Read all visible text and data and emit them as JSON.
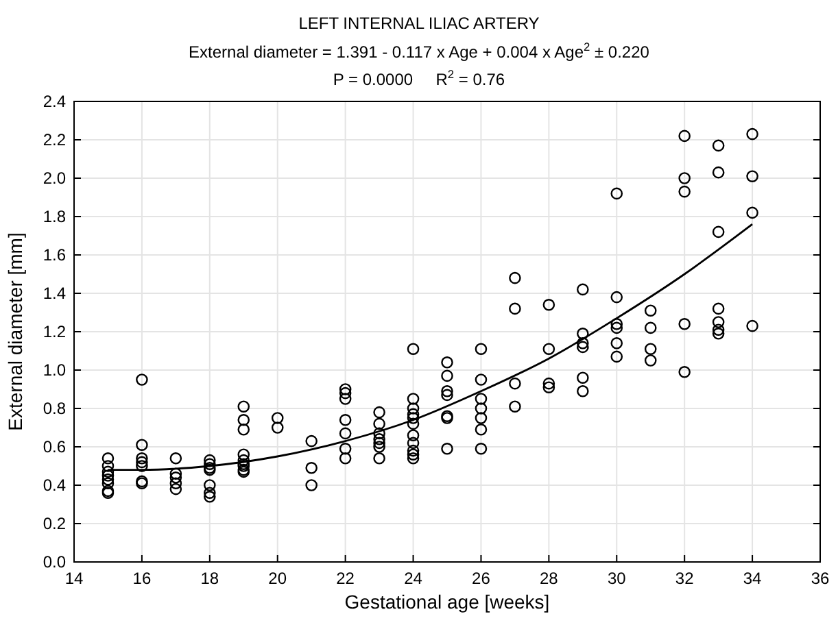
{
  "chart_data": {
    "type": "scatter",
    "title": "LEFT INTERNAL ILIAC ARTERY",
    "subtitle": "External diameter = 1.391 - 0.117 x Age + 0.004 x Age$^{2}$ ± 0.220",
    "annotations": [
      "P = 0.0000     R$^{2}$ = 0.76"
    ],
    "xlabel": "Gestational age [weeks]",
    "ylabel": "External diameter [mm]",
    "xlim": [
      14,
      36
    ],
    "xticks": [
      14,
      16,
      18,
      20,
      22,
      24,
      26,
      28,
      30,
      32,
      34,
      36
    ],
    "ylim": [
      0,
      2.4
    ],
    "yticks": [
      {
        "value": 0,
        "label": "0.0"
      },
      {
        "value": 0.2,
        "label": "0.2"
      },
      {
        "value": 0.4,
        "label": "0.4"
      },
      {
        "value": 0.6,
        "label": "0.6"
      },
      {
        "value": 0.8,
        "label": "0.8"
      },
      {
        "value": 1,
        "label": "1.0"
      },
      {
        "value": 1.2,
        "label": "1.2"
      },
      {
        "value": 1.4,
        "label": "1.4"
      },
      {
        "value": 1.6,
        "label": "1.6"
      },
      {
        "value": 1.8,
        "label": "1.8"
      },
      {
        "value": 2,
        "label": "2.0"
      },
      {
        "value": 2.2,
        "label": "2.2"
      },
      {
        "value": 2.4,
        "label": "2.4"
      }
    ],
    "grid": true,
    "series": [
      {
        "marker": "circle",
        "color": "#000000",
        "x": [
          15,
          15,
          15,
          15,
          15,
          15,
          15,
          15,
          16,
          16,
          16,
          16,
          16,
          16,
          16,
          17,
          17,
          17,
          17,
          17,
          18,
          18,
          18,
          18,
          18,
          18,
          18,
          19,
          19,
          19,
          19,
          19,
          19,
          19,
          19,
          19,
          20,
          20,
          21,
          21,
          21,
          22,
          22,
          22,
          22,
          22,
          22,
          22,
          23,
          23,
          23,
          23,
          23,
          23,
          23,
          24,
          24,
          24,
          24,
          24,
          24,
          24,
          24,
          24,
          24,
          24,
          25,
          25,
          25,
          25,
          25,
          25,
          25,
          26,
          26,
          26,
          26,
          26,
          26,
          26,
          27,
          27,
          27,
          27,
          28,
          28,
          28,
          28,
          29,
          29,
          29,
          29,
          29,
          29,
          30,
          30,
          30,
          30,
          30,
          30,
          31,
          31,
          31,
          31,
          32,
          32,
          32,
          32,
          32,
          33,
          33,
          33,
          33,
          33,
          33,
          33,
          34,
          34,
          34,
          34
        ],
        "values": [
          0.54,
          0.5,
          0.47,
          0.45,
          0.43,
          0.41,
          0.37,
          0.36,
          0.95,
          0.61,
          0.54,
          0.52,
          0.5,
          0.42,
          0.41,
          0.54,
          0.46,
          0.44,
          0.41,
          0.38,
          0.53,
          0.51,
          0.49,
          0.48,
          0.4,
          0.36,
          0.34,
          0.81,
          0.74,
          0.69,
          0.56,
          0.53,
          0.51,
          0.5,
          0.48,
          0.47,
          0.75,
          0.7,
          0.63,
          0.49,
          0.4,
          0.9,
          0.88,
          0.85,
          0.74,
          0.67,
          0.59,
          0.54,
          0.78,
          0.72,
          0.67,
          0.64,
          0.62,
          0.6,
          0.54,
          1.11,
          0.85,
          0.8,
          0.77,
          0.75,
          0.72,
          0.66,
          0.62,
          0.58,
          0.56,
          0.54,
          1.04,
          0.97,
          0.89,
          0.87,
          0.76,
          0.75,
          0.59,
          1.11,
          0.95,
          0.85,
          0.8,
          0.75,
          0.69,
          0.59,
          1.48,
          1.32,
          0.93,
          0.81,
          1.34,
          1.11,
          0.93,
          0.91,
          1.42,
          1.19,
          1.14,
          1.12,
          0.96,
          0.89,
          1.92,
          1.38,
          1.24,
          1.22,
          1.14,
          1.07,
          1.31,
          1.22,
          1.11,
          1.05,
          2.22,
          2,
          1.93,
          1.24,
          0.99,
          2.17,
          2.03,
          1.72,
          1.32,
          1.25,
          1.21,
          1.19,
          2.23,
          2.01,
          1.82,
          1.23
        ]
      },
      {
        "type": "line",
        "color": "#000000",
        "x": [
          15,
          16,
          18,
          20,
          22,
          24,
          26,
          28,
          30,
          32,
          34
        ],
        "values": [
          0.48,
          0.48,
          0.5,
          0.55,
          0.63,
          0.74,
          0.89,
          1.06,
          1.27,
          1.5,
          1.76
        ]
      }
    ]
  }
}
